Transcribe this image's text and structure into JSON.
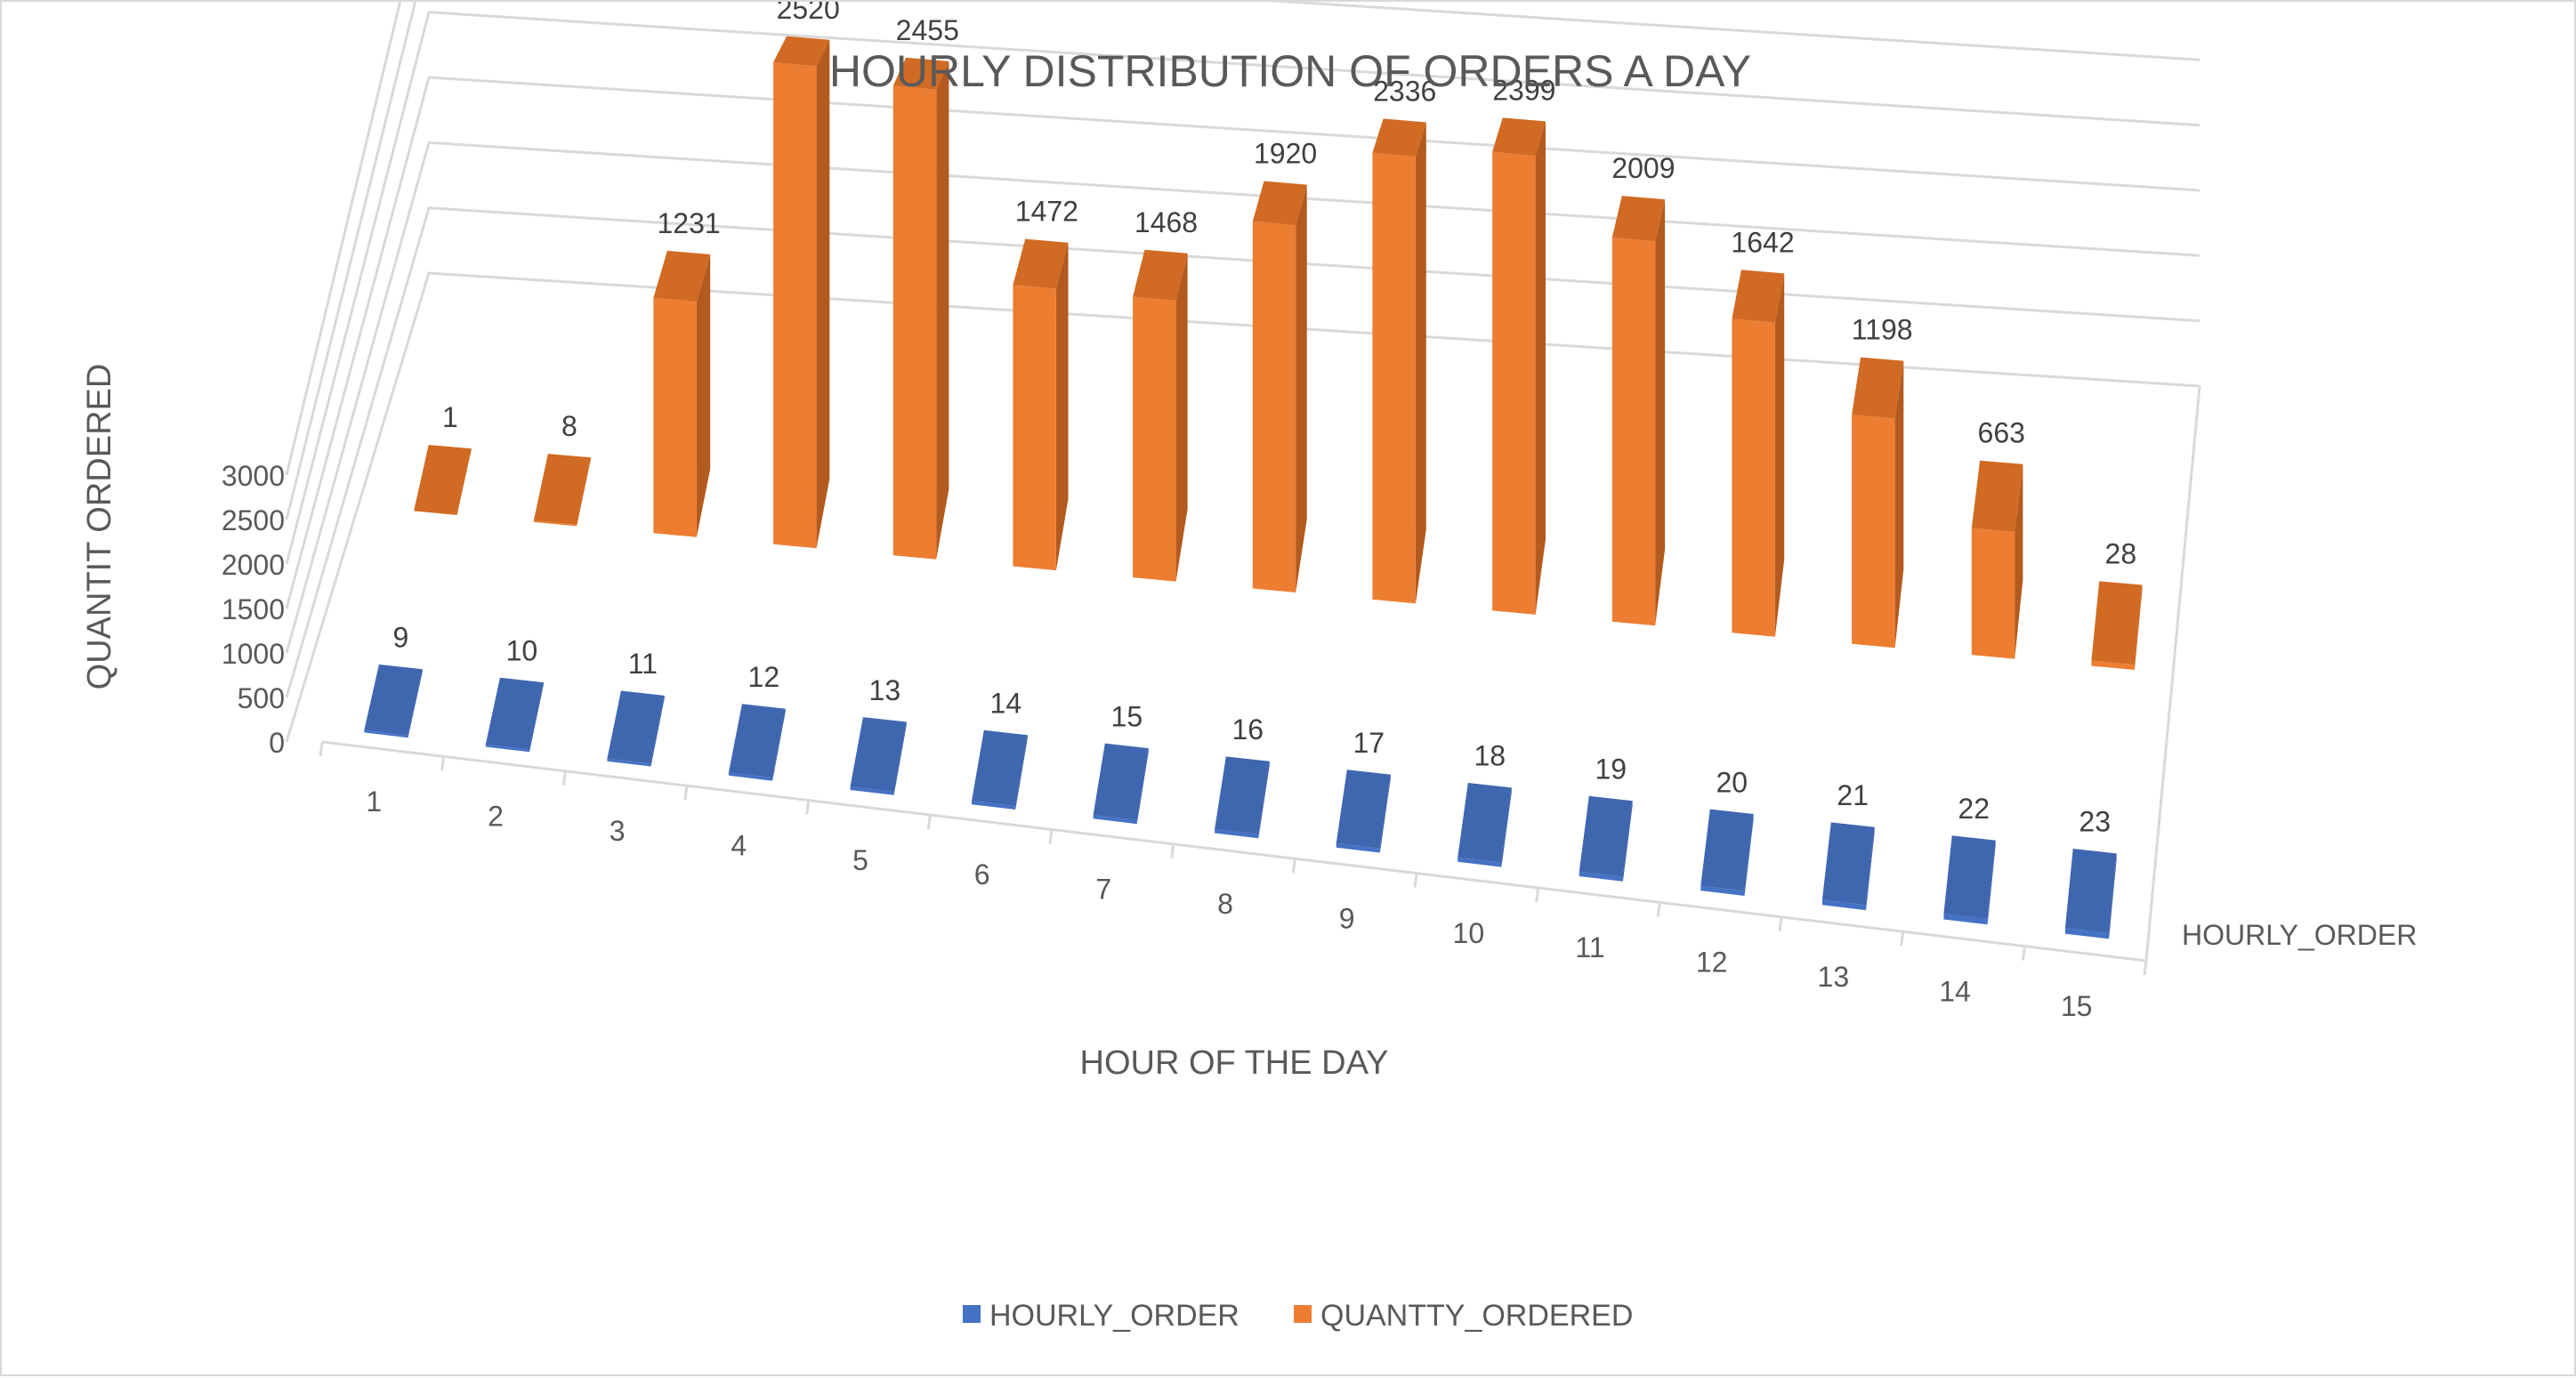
{
  "chart_data": {
    "type": "bar",
    "title": "HOURLY DISTRIBUTION OF ORDERS A DAY",
    "xlabel": "HOUR OF THE DAY",
    "ylabel": "QUANTIT ORDERED",
    "depth_axis_label": "HOURLY_ORDER",
    "ylim": [
      0,
      3000
    ],
    "yticks": [
      0,
      500,
      1000,
      1500,
      2000,
      2500,
      3000
    ],
    "categories": [
      "1",
      "2",
      "3",
      "4",
      "5",
      "6",
      "7",
      "8",
      "9",
      "10",
      "11",
      "12",
      "13",
      "14",
      "15"
    ],
    "series": [
      {
        "name": "HOURLY_ORDER",
        "color": "#4472c4",
        "values": [
          9,
          10,
          11,
          12,
          13,
          14,
          15,
          16,
          17,
          18,
          19,
          20,
          21,
          22,
          23
        ]
      },
      {
        "name": "QUANTTY_ORDERED",
        "color": "#ed7d31",
        "values": [
          1,
          8,
          1231,
          2520,
          2455,
          1472,
          1468,
          1920,
          2336,
          2399,
          2009,
          1642,
          1198,
          663,
          28
        ]
      }
    ],
    "legend": "bottom",
    "grid": true
  }
}
